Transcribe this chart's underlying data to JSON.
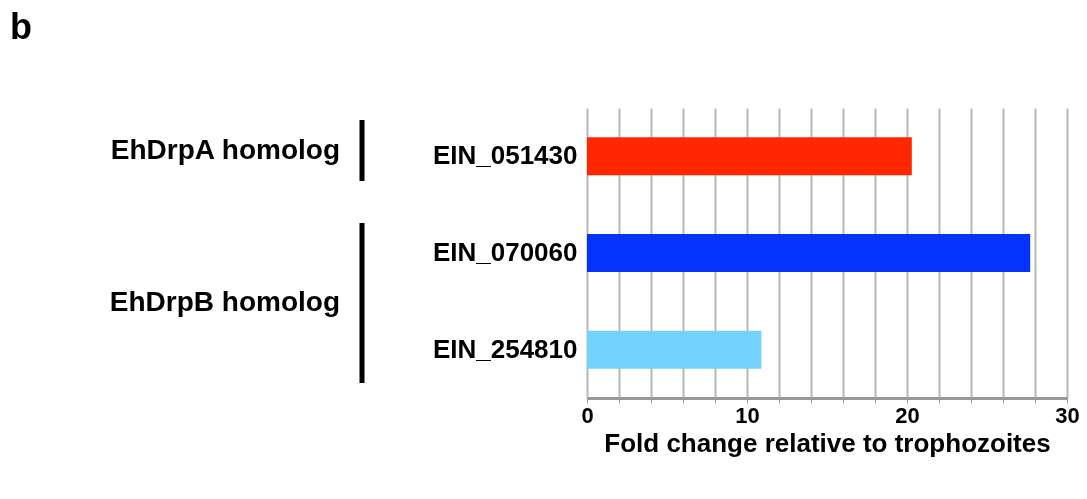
{
  "chart_data": {
    "type": "bar",
    "orientation": "horizontal",
    "xlabel": "Fold change relative to trophozoites",
    "categories": [
      "EIN_051430",
      "EIN_070060",
      "EIN_254810"
    ],
    "values": [
      20.3,
      27.7,
      10.9
    ],
    "colors": [
      "#ff2600",
      "#0433ff",
      "#73d3fc"
    ],
    "xlim": [
      0,
      30
    ],
    "xticks": [
      0,
      {
        "value": 2,
        "label": null
      },
      {
        "value": 4,
        "label": null
      },
      {
        "value": 6,
        "label": null
      },
      {
        "value": 8,
        "label": null
      },
      10,
      {
        "value": 12,
        "label": null
      },
      {
        "value": 14,
        "label": null
      },
      {
        "value": 16,
        "label": null
      },
      {
        "value": 18,
        "label": null
      },
      20,
      {
        "value": 22,
        "label": null
      },
      {
        "value": 24,
        "label": null
      },
      {
        "value": 26,
        "label": null
      },
      {
        "value": 28,
        "label": null
      },
      30
    ],
    "grid": "x",
    "annotations": [
      "b",
      "EhDrpA homolog",
      "EhDrpB homolog"
    ]
  }
}
